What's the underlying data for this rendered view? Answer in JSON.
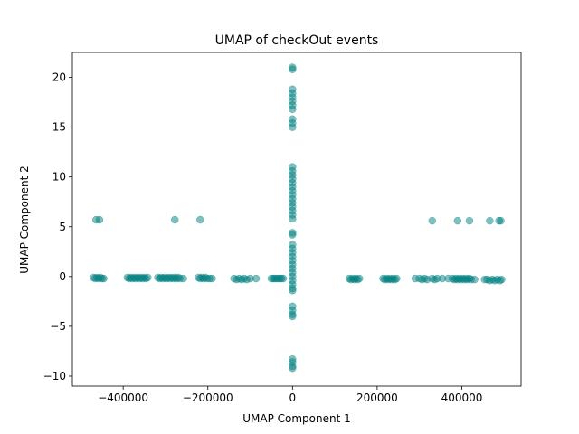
{
  "chart_data": {
    "type": "scatter",
    "title": "UMAP of checkOut events",
    "xlabel": "UMAP Component 1",
    "ylabel": "UMAP Component 2",
    "xlim": [
      -520000,
      540000
    ],
    "ylim": [
      -11.0,
      22.5
    ],
    "xticks": [
      -400000,
      -200000,
      0,
      200000,
      400000
    ],
    "xtick_labels": [
      "−400000",
      "−200000",
      "0",
      "200000",
      "400000"
    ],
    "yticks": [
      -10,
      -5,
      0,
      5,
      10,
      15,
      20
    ],
    "ytick_labels": [
      "−10",
      "−5",
      "0",
      "5",
      "10",
      "15",
      "20"
    ],
    "grid": false,
    "marker_color": "#008080",
    "marker_alpha": 0.5,
    "series": [
      {
        "points": [
          [
            -470000,
            -0.1
          ],
          [
            -466000,
            -0.2
          ],
          [
            -462000,
            -0.1
          ],
          [
            -458000,
            -0.2
          ],
          [
            -454000,
            -0.1
          ],
          [
            -450000,
            -0.2
          ],
          [
            -446000,
            -0.2
          ],
          [
            -390000,
            -0.1
          ],
          [
            -386000,
            -0.2
          ],
          [
            -382000,
            -0.1
          ],
          [
            -378000,
            -0.2
          ],
          [
            -374000,
            -0.1
          ],
          [
            -370000,
            -0.2
          ],
          [
            -366000,
            -0.1
          ],
          [
            -362000,
            -0.2
          ],
          [
            -358000,
            -0.1
          ],
          [
            -354000,
            -0.2
          ],
          [
            -350000,
            -0.1
          ],
          [
            -346000,
            -0.2
          ],
          [
            -342000,
            -0.1
          ],
          [
            -318000,
            -0.1
          ],
          [
            -314000,
            -0.2
          ],
          [
            -310000,
            -0.1
          ],
          [
            -306000,
            -0.2
          ],
          [
            -302000,
            -0.1
          ],
          [
            -298000,
            -0.2
          ],
          [
            -294000,
            -0.1
          ],
          [
            -290000,
            -0.2
          ],
          [
            -286000,
            -0.1
          ],
          [
            -282000,
            -0.2
          ],
          [
            -278000,
            -0.1
          ],
          [
            -274000,
            -0.2
          ],
          [
            -270000,
            -0.1
          ],
          [
            -266000,
            -0.2
          ],
          [
            -258000,
            -0.2
          ],
          [
            -222000,
            -0.1
          ],
          [
            -218000,
            -0.2
          ],
          [
            -214000,
            -0.1
          ],
          [
            -210000,
            -0.2
          ],
          [
            -206000,
            -0.1
          ],
          [
            -202000,
            -0.2
          ],
          [
            -196000,
            -0.2
          ],
          [
            -190000,
            -0.2
          ],
          [
            -138000,
            -0.2
          ],
          [
            -132000,
            -0.3
          ],
          [
            -126000,
            -0.2
          ],
          [
            -120000,
            -0.3
          ],
          [
            -114000,
            -0.2
          ],
          [
            -108000,
            -0.3
          ],
          [
            -100000,
            -0.2
          ],
          [
            -86000,
            -0.2
          ],
          [
            -50000,
            -0.2
          ],
          [
            -46000,
            -0.2
          ],
          [
            -42000,
            -0.2
          ],
          [
            -38000,
            -0.2
          ],
          [
            -34000,
            -0.2
          ],
          [
            -30000,
            -0.2
          ],
          [
            -26000,
            -0.2
          ],
          [
            -22000,
            -0.2
          ],
          [
            -464000,
            5.7
          ],
          [
            -456000,
            5.7
          ],
          [
            -278000,
            5.7
          ],
          [
            -218000,
            5.7
          ],
          [
            0,
            21.0
          ],
          [
            0,
            20.8
          ],
          [
            0,
            18.8
          ],
          [
            0,
            18.4
          ],
          [
            0,
            18.0
          ],
          [
            0,
            17.6
          ],
          [
            0,
            17.2
          ],
          [
            0,
            16.8
          ],
          [
            0,
            15.8
          ],
          [
            0,
            15.4
          ],
          [
            0,
            15.0
          ],
          [
            0,
            11.0
          ],
          [
            0,
            10.6
          ],
          [
            0,
            10.2
          ],
          [
            0,
            9.8
          ],
          [
            0,
            9.4
          ],
          [
            0,
            9.0
          ],
          [
            0,
            8.6
          ],
          [
            0,
            8.2
          ],
          [
            0,
            7.8
          ],
          [
            0,
            7.4
          ],
          [
            0,
            7.0
          ],
          [
            0,
            6.6
          ],
          [
            0,
            6.2
          ],
          [
            0,
            5.8
          ],
          [
            0,
            4.4
          ],
          [
            0,
            4.2
          ],
          [
            0,
            3.2
          ],
          [
            0,
            2.8
          ],
          [
            0,
            2.4
          ],
          [
            0,
            2.0
          ],
          [
            0,
            1.6
          ],
          [
            0,
            1.2
          ],
          [
            0,
            0.8
          ],
          [
            0,
            0.4
          ],
          [
            0,
            0.0
          ],
          [
            0,
            -0.4
          ],
          [
            0,
            -0.8
          ],
          [
            0,
            -1.2
          ],
          [
            0,
            -1.4
          ],
          [
            0,
            -3.0
          ],
          [
            0,
            -3.4
          ],
          [
            0,
            -3.8
          ],
          [
            0,
            -4.0
          ],
          [
            0,
            -8.3
          ],
          [
            0,
            -8.6
          ],
          [
            0,
            -9.0
          ],
          [
            0,
            -9.2
          ],
          [
            134000,
            -0.2
          ],
          [
            138000,
            -0.3
          ],
          [
            142000,
            -0.2
          ],
          [
            146000,
            -0.3
          ],
          [
            150000,
            -0.2
          ],
          [
            154000,
            -0.3
          ],
          [
            158000,
            -0.2
          ],
          [
            214000,
            -0.2
          ],
          [
            218000,
            -0.3
          ],
          [
            222000,
            -0.2
          ],
          [
            226000,
            -0.3
          ],
          [
            230000,
            -0.2
          ],
          [
            234000,
            -0.3
          ],
          [
            238000,
            -0.2
          ],
          [
            242000,
            -0.3
          ],
          [
            246000,
            -0.2
          ],
          [
            290000,
            -0.2
          ],
          [
            300000,
            -0.2
          ],
          [
            306000,
            -0.3
          ],
          [
            312000,
            -0.2
          ],
          [
            318000,
            -0.3
          ],
          [
            330000,
            -0.2
          ],
          [
            336000,
            -0.3
          ],
          [
            342000,
            -0.2
          ],
          [
            354000,
            -0.2
          ],
          [
            368000,
            -0.2
          ],
          [
            378000,
            -0.2
          ],
          [
            382000,
            -0.3
          ],
          [
            386000,
            -0.2
          ],
          [
            390000,
            -0.3
          ],
          [
            394000,
            -0.2
          ],
          [
            398000,
            -0.3
          ],
          [
            402000,
            -0.2
          ],
          [
            406000,
            -0.3
          ],
          [
            410000,
            -0.2
          ],
          [
            414000,
            -0.3
          ],
          [
            418000,
            -0.2
          ],
          [
            422000,
            -0.3
          ],
          [
            430000,
            -0.3
          ],
          [
            454000,
            -0.3
          ],
          [
            460000,
            -0.3
          ],
          [
            466000,
            -0.4
          ],
          [
            472000,
            -0.3
          ],
          [
            478000,
            -0.4
          ],
          [
            484000,
            -0.3
          ],
          [
            490000,
            -0.4
          ],
          [
            494000,
            -0.3
          ],
          [
            330000,
            5.6
          ],
          [
            390000,
            5.6
          ],
          [
            418000,
            5.6
          ],
          [
            466000,
            5.6
          ],
          [
            488000,
            5.6
          ],
          [
            492000,
            5.6
          ]
        ]
      }
    ]
  }
}
